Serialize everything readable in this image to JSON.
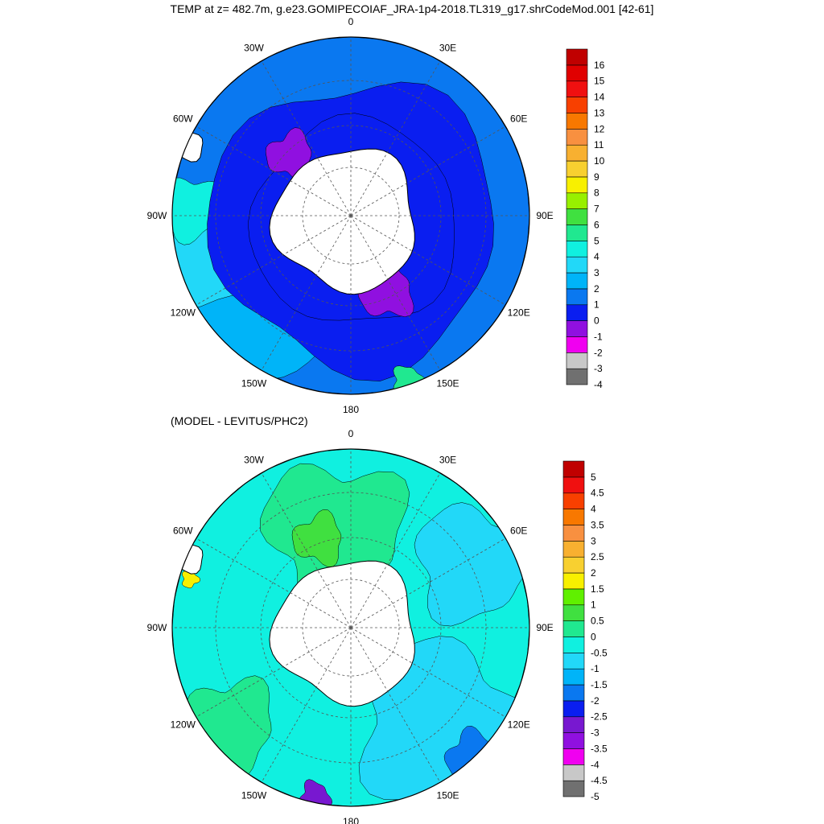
{
  "title": "TEMP at z= 482.7m, g.e23.GOMIPECOIAF_JRA-1p4-2018.TL319_g17.shrCodeMod.001 [42-61]",
  "subtitle": "(MODEL - LEVITUS/PHC2)",
  "colors": {
    "land": "#ffffff",
    "coastline": "#000000",
    "grid": "#555555"
  },
  "chart_data": [
    {
      "type": "map",
      "projection": "south-polar-stereographic",
      "title": "TEMP at z= 482.7m, g.e23.GOMIPECOIAF_JRA-1p4-2018.TL319_g17.shrCodeMod.001 [42-61]",
      "lon_labels": [
        "0",
        "30E",
        "60E",
        "90E",
        "120E",
        "150E",
        "180",
        "150W",
        "120W",
        "90W",
        "60W",
        "30W"
      ],
      "colorbar": {
        "labels": [
          "-4",
          "-3",
          "-2",
          "-1",
          "0",
          "1",
          "2",
          "3",
          "4",
          "5",
          "6",
          "7",
          "8",
          "9",
          "10",
          "11",
          "12",
          "13",
          "14",
          "15",
          "16"
        ],
        "colors": [
          "#707070",
          "#c8c8c8",
          "#f000f0",
          "#9010e0",
          "#0a1ef0",
          "#0a78f0",
          "#00b4f8",
          "#22d8f8",
          "#10f0e0",
          "#20e890",
          "#40e040",
          "#98f000",
          "#f8f000",
          "#f8d030",
          "#f8b030",
          "#f89040",
          "#f87800",
          "#f84000",
          "#f01010",
          "#e00000",
          "#c00000"
        ]
      }
    },
    {
      "type": "map",
      "projection": "south-polar-stereographic",
      "title": "(MODEL - LEVITUS/PHC2)",
      "lon_labels": [
        "0",
        "30E",
        "60E",
        "90E",
        "120E",
        "150E",
        "180",
        "150W",
        "120W",
        "90W",
        "60W",
        "30W"
      ],
      "colorbar": {
        "labels": [
          "-5",
          "-4.5",
          "-4",
          "-3.5",
          "-3",
          "-2.5",
          "-2",
          "-1.5",
          "-1",
          "-0.5",
          "0",
          "0.5",
          "1",
          "1.5",
          "2",
          "2.5",
          "3",
          "3.5",
          "4",
          "4.5",
          "5"
        ],
        "colors": [
          "#707070",
          "#c8c8c8",
          "#f000f0",
          "#9010e0",
          "#7818d0",
          "#0a1ef0",
          "#0a78f0",
          "#00b4f8",
          "#22d8f8",
          "#10f0e0",
          "#20e890",
          "#40e040",
          "#60f000",
          "#f8f000",
          "#f8d030",
          "#f8b030",
          "#f89040",
          "#f87800",
          "#f84000",
          "#f01010",
          "#c00000"
        ]
      }
    }
  ]
}
